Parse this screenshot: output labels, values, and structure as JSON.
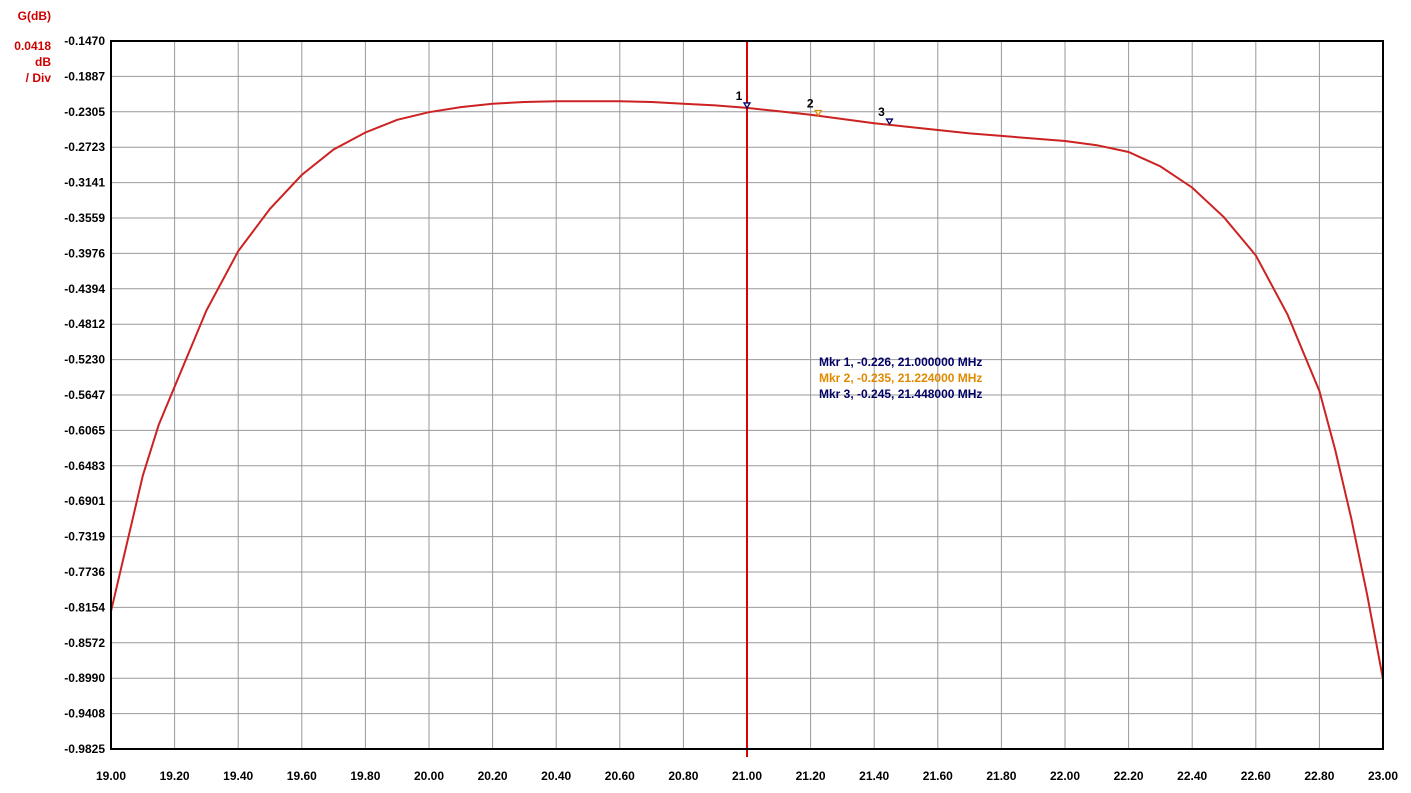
{
  "chart_data": {
    "type": "line",
    "ylabel": "G(dB)",
    "scale_value": "0.0418",
    "scale_unit": "dB",
    "scale_per": "/ Div",
    "x_ticks": [
      "19.00",
      "19.20",
      "19.40",
      "19.60",
      "19.80",
      "20.00",
      "20.20",
      "20.40",
      "20.60",
      "20.80",
      "21.00",
      "21.20",
      "21.40",
      "21.60",
      "21.80",
      "22.00",
      "22.20",
      "22.40",
      "22.60",
      "22.80",
      "23.00"
    ],
    "y_ticks": [
      "-0.1470",
      "-0.1887",
      "-0.2305",
      "-0.2723",
      "-0.3141",
      "-0.3559",
      "-0.3976",
      "-0.4394",
      "-0.4812",
      "-0.5230",
      "-0.5647",
      "-0.6065",
      "-0.6483",
      "-0.6901",
      "-0.7319",
      "-0.7736",
      "-0.8154",
      "-0.8572",
      "-0.8990",
      "-0.9408",
      "-0.9825"
    ],
    "xlim": [
      19.0,
      23.0
    ],
    "ylim": [
      -0.9825,
      -0.147
    ],
    "grid": true,
    "colors": {
      "trace": "#cc2222",
      "cursor": "#dd0000",
      "grid": "#999999",
      "frame": "#000000"
    },
    "series": [
      {
        "x": [
          19.0,
          19.05,
          19.1,
          19.15,
          19.2,
          19.3,
          19.4,
          19.5,
          19.6,
          19.7,
          19.8,
          19.9,
          20.0,
          20.1,
          20.2,
          20.3,
          20.4,
          20.5,
          20.6,
          20.7,
          20.8,
          20.9,
          21.0,
          21.1,
          21.2,
          21.3,
          21.4,
          21.5,
          21.6,
          21.7,
          21.8,
          21.9,
          22.0,
          22.1,
          22.2,
          22.3,
          22.4,
          22.5,
          22.6,
          22.7,
          22.8,
          22.85,
          22.9,
          22.95,
          23.0
        ],
        "y": [
          -0.82,
          -0.74,
          -0.66,
          -0.6,
          -0.555,
          -0.465,
          -0.395,
          -0.345,
          -0.305,
          -0.275,
          -0.255,
          -0.24,
          -0.231,
          -0.225,
          -0.221,
          -0.219,
          -0.218,
          -0.218,
          -0.218,
          -0.219,
          -0.221,
          -0.223,
          -0.226,
          -0.23,
          -0.234,
          -0.239,
          -0.244,
          -0.248,
          -0.252,
          -0.256,
          -0.259,
          -0.262,
          -0.265,
          -0.27,
          -0.278,
          -0.295,
          -0.32,
          -0.355,
          -0.4,
          -0.47,
          -0.56,
          -0.63,
          -0.71,
          -0.8,
          -0.9
        ]
      }
    ],
    "cursor_x": 21.0,
    "markers": [
      {
        "label": "1",
        "x": 21.0,
        "y": -0.226,
        "color": "#000066",
        "text": "Mkr 1, -0.226, 21.000000 MHz"
      },
      {
        "label": "2",
        "x": 21.224,
        "y": -0.235,
        "color": "#e08a00",
        "text": "Mkr 2, -0.235, 21.224000 MHz"
      },
      {
        "label": "3",
        "x": 21.448,
        "y": -0.245,
        "color": "#000066",
        "text": "Mkr 3, -0.245, 21.448000 MHz"
      }
    ]
  }
}
